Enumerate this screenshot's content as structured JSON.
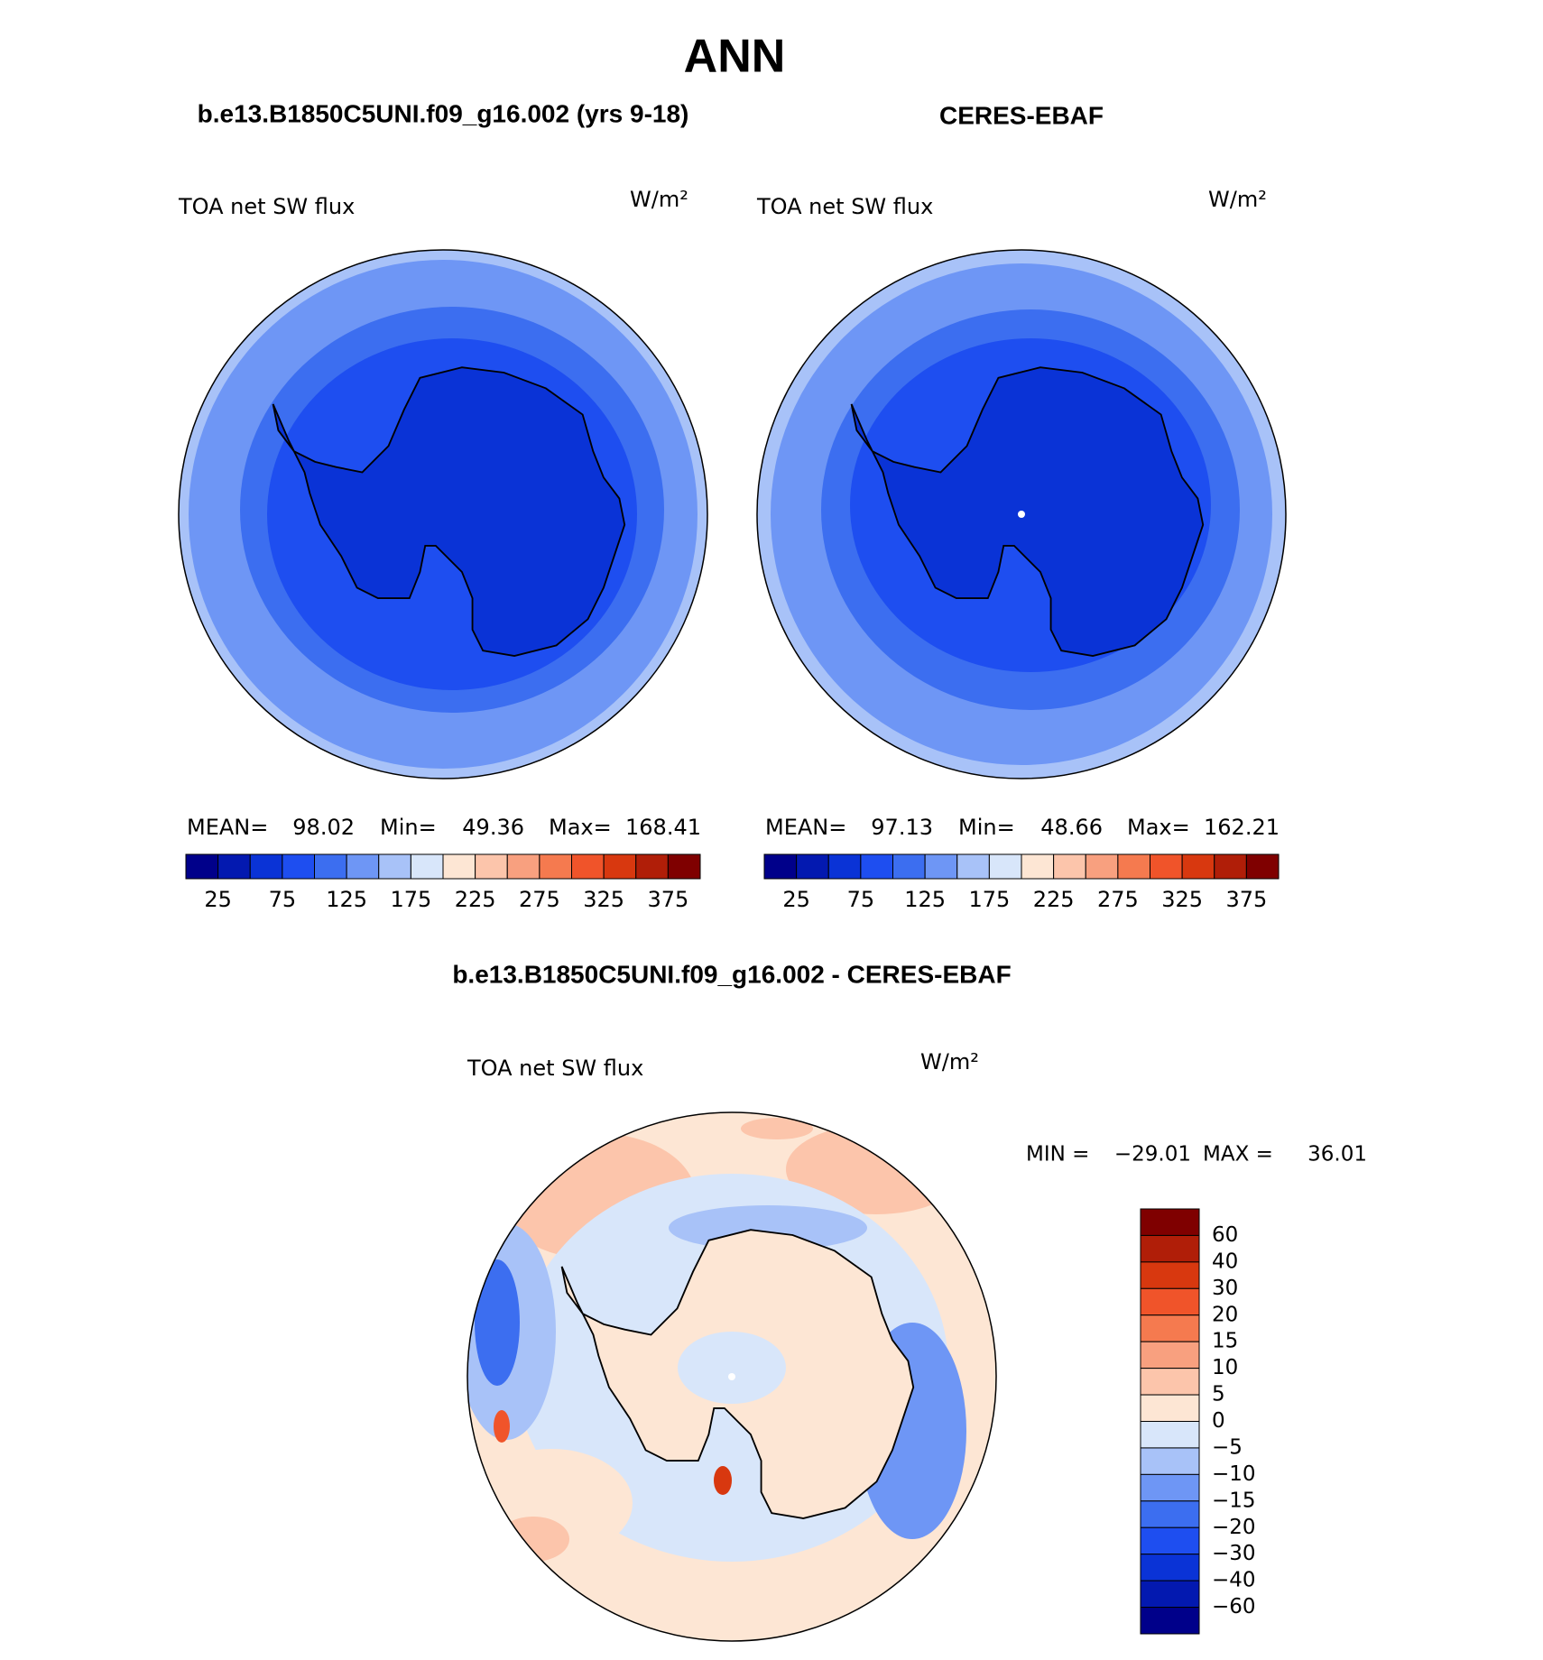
{
  "title": "ANN",
  "panels": [
    {
      "subtitle": "b.e13.B1850C5UNI.f09_g16.002 (yrs 9-18)",
      "field": "TOA net SW flux",
      "units": "W/m²",
      "stats": [
        {
          "label": "MEAN=",
          "value": 98.02
        },
        {
          "label": "Min=",
          "value": 49.36
        },
        {
          "label": "Max=",
          "value": 168.41
        }
      ]
    },
    {
      "subtitle": "CERES-EBAF",
      "field": "TOA net SW flux",
      "units": "W/m²",
      "stats": [
        {
          "label": "MEAN=",
          "value": 97.13
        },
        {
          "label": "Min=",
          "value": 48.66
        },
        {
          "label": "Max=",
          "value": 162.21
        }
      ]
    }
  ],
  "colorbar": {
    "colors": [
      "#00008a",
      "#0319b0",
      "#0a33d6",
      "#1e4ef0",
      "#3c6ef0",
      "#6e96f5",
      "#a8c2f8",
      "#d8e6fa",
      "#fde6d4",
      "#fcc5ab",
      "#f8a07f",
      "#f57a4f",
      "#f0542a",
      "#d8380f",
      "#b01e08",
      "#7f0000"
    ],
    "labels": [
      25,
      75,
      125,
      175,
      225,
      275,
      325,
      375
    ]
  },
  "difference": {
    "subtitle": "b.e13.B1850C5UNI.f09_g16.002 - CERES-EBAF",
    "field": "TOA net SW flux",
    "units": "W/m²",
    "stats": [
      {
        "label": "MIN =",
        "value": "−29.01"
      },
      {
        "label": "MAX =",
        "value": 36.01
      }
    ],
    "colorbar": {
      "colors": [
        "#7f0000",
        "#b01e08",
        "#d8380f",
        "#f0542a",
        "#f57a4f",
        "#f8a07f",
        "#fcc5ab",
        "#fde6d4",
        "#d8e6fa",
        "#a8c2f8",
        "#6e96f5",
        "#3c6ef0",
        "#1e4ef0",
        "#0a33d6",
        "#0319b0",
        "#00008a"
      ],
      "labels": [
        "60",
        "40",
        "30",
        "20",
        "15",
        "10",
        "5",
        "0",
        "−5",
        "−10",
        "−15",
        "−20",
        "−30",
        "−40",
        "−60"
      ]
    }
  }
}
